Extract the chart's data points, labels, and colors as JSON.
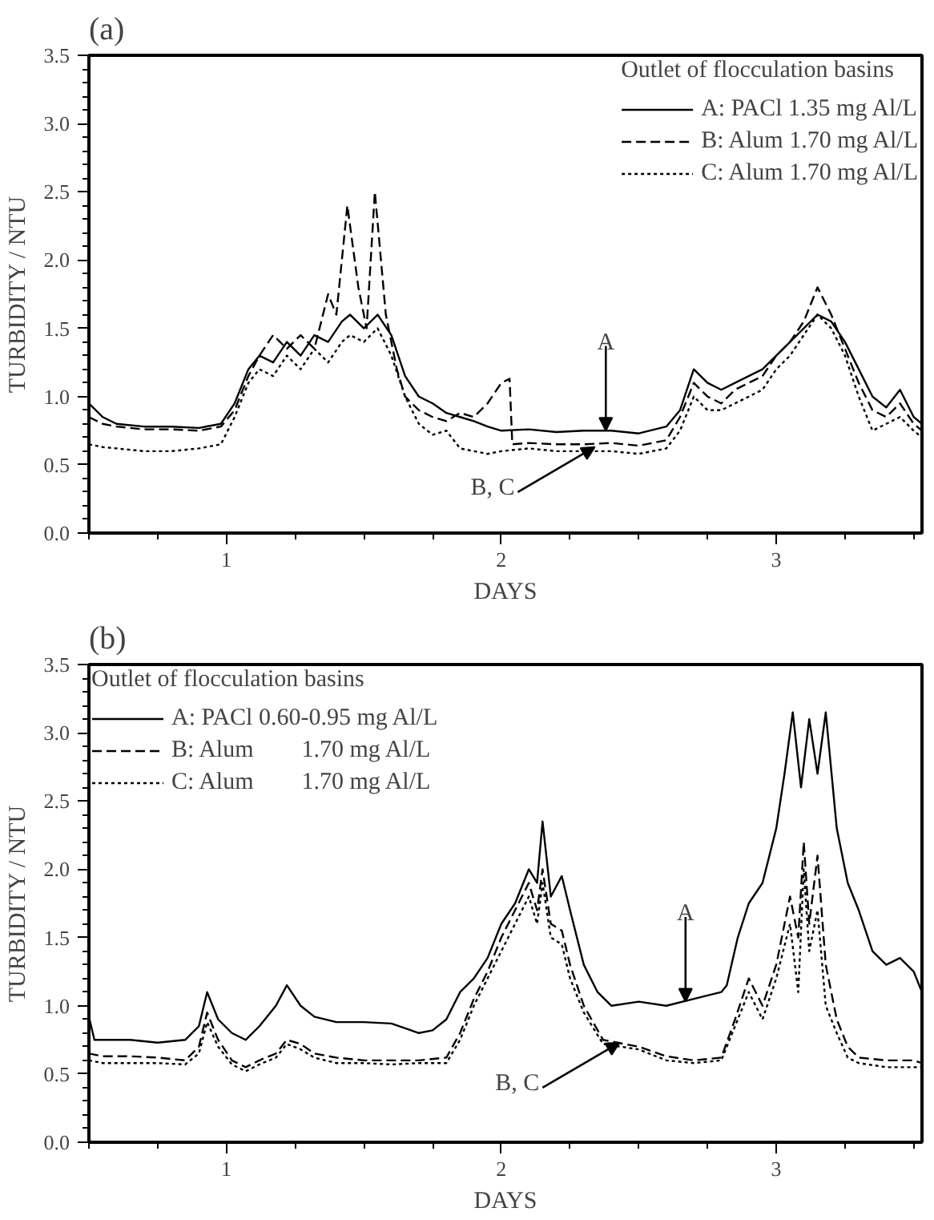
{
  "chart_data": [
    {
      "type": "line",
      "title": "(a)",
      "xlabel": "DAYS",
      "ylabel": "TURBIDITY / NTU",
      "legend_title": "Outlet of flocculation basins",
      "legend": "top right",
      "grid": false,
      "xlim": [
        0.5,
        3.53
      ],
      "xticks": [
        1,
        2,
        3
      ],
      "ylim": [
        0,
        3.5
      ],
      "yticks": [
        {
          "value": 0,
          "label": "0.0"
        },
        {
          "value": 0.5,
          "label": "0.5"
        },
        {
          "value": 1,
          "label": "1.0"
        },
        {
          "value": 1.5,
          "label": "1.5"
        },
        {
          "value": 2,
          "label": "2.0"
        },
        {
          "value": 2.5,
          "label": "2.5"
        },
        {
          "value": 3,
          "label": "3.0"
        },
        {
          "value": 3.5,
          "label": "3.5"
        }
      ],
      "annotations": [
        {
          "text": "A",
          "x": 2.38,
          "y": 0.75
        },
        {
          "text": "B, C",
          "x": 2.34,
          "y": 0.63
        }
      ],
      "series": [
        {
          "name": "A: PACl 1.35 mg Al/L",
          "color": "#000000",
          "line_style": "solid",
          "x": [
            0.5,
            0.55,
            0.6,
            0.7,
            0.8,
            0.9,
            0.98,
            1.03,
            1.08,
            1.12,
            1.17,
            1.22,
            1.27,
            1.32,
            1.37,
            1.42,
            1.45,
            1.5,
            1.55,
            1.6,
            1.65,
            1.7,
            1.75,
            1.8,
            1.85,
            1.9,
            1.95,
            2.0,
            2.1,
            2.2,
            2.3,
            2.4,
            2.5,
            2.6,
            2.65,
            2.7,
            2.75,
            2.8,
            2.85,
            2.9,
            2.95,
            3.0,
            3.05,
            3.1,
            3.15,
            3.2,
            3.25,
            3.3,
            3.35,
            3.4,
            3.45,
            3.5,
            3.53
          ],
          "values": [
            0.95,
            0.85,
            0.8,
            0.78,
            0.78,
            0.77,
            0.8,
            0.95,
            1.2,
            1.3,
            1.25,
            1.4,
            1.3,
            1.45,
            1.4,
            1.55,
            1.6,
            1.5,
            1.6,
            1.45,
            1.15,
            1.0,
            0.95,
            0.88,
            0.85,
            0.82,
            0.78,
            0.75,
            0.76,
            0.74,
            0.75,
            0.75,
            0.73,
            0.78,
            0.9,
            1.2,
            1.1,
            1.05,
            1.1,
            1.15,
            1.2,
            1.3,
            1.4,
            1.5,
            1.6,
            1.55,
            1.4,
            1.2,
            1.0,
            0.92,
            1.05,
            0.85,
            0.8
          ]
        },
        {
          "name": "B: Alum 1.70 mg Al/L",
          "color": "#000000",
          "line_style": "dashed",
          "x": [
            0.5,
            0.55,
            0.6,
            0.7,
            0.8,
            0.9,
            0.98,
            1.03,
            1.08,
            1.12,
            1.17,
            1.22,
            1.27,
            1.32,
            1.37,
            1.4,
            1.44,
            1.48,
            1.51,
            1.54,
            1.58,
            1.62,
            1.65,
            1.7,
            1.75,
            1.8,
            1.85,
            1.9,
            1.95,
            2.0,
            2.03,
            2.04,
            2.1,
            2.2,
            2.3,
            2.4,
            2.5,
            2.6,
            2.65,
            2.7,
            2.75,
            2.8,
            2.85,
            2.9,
            2.95,
            3.0,
            3.05,
            3.1,
            3.15,
            3.2,
            3.25,
            3.3,
            3.35,
            3.4,
            3.45,
            3.5,
            3.53
          ],
          "values": [
            0.85,
            0.8,
            0.78,
            0.76,
            0.76,
            0.75,
            0.78,
            0.9,
            1.15,
            1.3,
            1.45,
            1.35,
            1.45,
            1.35,
            1.75,
            1.6,
            2.4,
            1.8,
            1.5,
            2.5,
            1.6,
            1.2,
            1.0,
            0.9,
            0.85,
            0.82,
            0.88,
            0.85,
            0.95,
            1.1,
            1.13,
            0.65,
            0.66,
            0.65,
            0.65,
            0.66,
            0.64,
            0.68,
            0.85,
            1.1,
            1.0,
            0.95,
            1.05,
            1.1,
            1.15,
            1.3,
            1.4,
            1.55,
            1.8,
            1.6,
            1.35,
            1.1,
            0.9,
            0.85,
            0.95,
            0.8,
            0.75
          ]
        },
        {
          "name": "C: Alum 1.70 mg Al/L",
          "color": "#000000",
          "line_style": "dotted",
          "x": [
            0.5,
            0.55,
            0.6,
            0.7,
            0.8,
            0.9,
            0.98,
            1.03,
            1.08,
            1.12,
            1.17,
            1.22,
            1.27,
            1.32,
            1.37,
            1.42,
            1.45,
            1.5,
            1.55,
            1.6,
            1.65,
            1.7,
            1.75,
            1.8,
            1.85,
            1.9,
            1.95,
            2.0,
            2.1,
            2.2,
            2.3,
            2.4,
            2.5,
            2.6,
            2.65,
            2.7,
            2.75,
            2.8,
            2.85,
            2.9,
            2.95,
            3.0,
            3.05,
            3.1,
            3.15,
            3.2,
            3.25,
            3.3,
            3.35,
            3.4,
            3.45,
            3.5,
            3.53
          ],
          "values": [
            0.65,
            0.63,
            0.62,
            0.6,
            0.6,
            0.62,
            0.65,
            0.85,
            1.1,
            1.2,
            1.15,
            1.3,
            1.2,
            1.35,
            1.25,
            1.4,
            1.45,
            1.4,
            1.5,
            1.3,
            1.0,
            0.8,
            0.72,
            0.75,
            0.62,
            0.6,
            0.58,
            0.6,
            0.62,
            0.6,
            0.6,
            0.6,
            0.58,
            0.62,
            0.75,
            1.0,
            0.9,
            0.9,
            0.95,
            1.0,
            1.05,
            1.2,
            1.3,
            1.45,
            1.6,
            1.5,
            1.3,
            1.0,
            0.75,
            0.8,
            0.85,
            0.75,
            0.7
          ]
        }
      ]
    },
    {
      "type": "line",
      "title": "(b)",
      "xlabel": "DAYS",
      "ylabel": "TURBIDITY / NTU",
      "legend_title": "Outlet of flocculation basins",
      "legend": "top left",
      "grid": false,
      "xlim": [
        0.5,
        3.53
      ],
      "xticks": [
        1,
        2,
        3
      ],
      "ylim": [
        0,
        3.5
      ],
      "yticks": [
        {
          "value": 0,
          "label": "0.0"
        },
        {
          "value": 0.5,
          "label": "0.5"
        },
        {
          "value": 1,
          "label": "1.0"
        },
        {
          "value": 1.5,
          "label": "1.5"
        },
        {
          "value": 2,
          "label": "2.0"
        },
        {
          "value": 2.5,
          "label": "2.5"
        },
        {
          "value": 3,
          "label": "3.0"
        },
        {
          "value": 3.5,
          "label": "3.5"
        }
      ],
      "annotations": [
        {
          "text": "A",
          "x": 2.67,
          "y": 1.03
        },
        {
          "text": "B, C",
          "x": 2.43,
          "y": 0.73
        }
      ],
      "series": [
        {
          "name": "A: PACl 0.60-0.95 mg Al/L",
          "color": "#000000",
          "line_style": "solid",
          "x": [
            0.5,
            0.52,
            0.55,
            0.65,
            0.75,
            0.85,
            0.9,
            0.93,
            0.97,
            1.02,
            1.07,
            1.12,
            1.18,
            1.22,
            1.27,
            1.32,
            1.4,
            1.5,
            1.6,
            1.7,
            1.75,
            1.8,
            1.85,
            1.9,
            1.95,
            2.0,
            2.05,
            2.1,
            2.13,
            2.15,
            2.18,
            2.22,
            2.25,
            2.3,
            2.35,
            2.4,
            2.5,
            2.6,
            2.7,
            2.8,
            2.82,
            2.86,
            2.9,
            2.95,
            3.0,
            3.03,
            3.06,
            3.09,
            3.12,
            3.15,
            3.18,
            3.22,
            3.26,
            3.3,
            3.35,
            3.4,
            3.45,
            3.5,
            3.53
          ],
          "values": [
            0.92,
            0.75,
            0.75,
            0.75,
            0.73,
            0.75,
            0.85,
            1.1,
            0.9,
            0.8,
            0.75,
            0.85,
            1.0,
            1.15,
            1.0,
            0.92,
            0.88,
            0.88,
            0.87,
            0.8,
            0.82,
            0.9,
            1.1,
            1.2,
            1.35,
            1.6,
            1.75,
            2.0,
            1.9,
            2.35,
            1.8,
            1.95,
            1.7,
            1.3,
            1.1,
            1.0,
            1.03,
            1.0,
            1.05,
            1.1,
            1.15,
            1.5,
            1.75,
            1.9,
            2.3,
            2.7,
            3.15,
            2.6,
            3.1,
            2.7,
            3.15,
            2.3,
            1.9,
            1.7,
            1.4,
            1.3,
            1.35,
            1.25,
            1.1
          ]
        },
        {
          "name": "B: Alum        1.70 mg Al/L",
          "color": "#000000",
          "line_style": "dashed",
          "x": [
            0.5,
            0.55,
            0.65,
            0.75,
            0.85,
            0.9,
            0.93,
            0.97,
            1.02,
            1.07,
            1.12,
            1.18,
            1.22,
            1.27,
            1.32,
            1.4,
            1.5,
            1.6,
            1.7,
            1.8,
            1.85,
            1.9,
            1.95,
            2.0,
            2.05,
            2.1,
            2.13,
            2.15,
            2.18,
            2.22,
            2.25,
            2.3,
            2.37,
            2.5,
            2.6,
            2.7,
            2.8,
            2.85,
            2.9,
            2.95,
            3.0,
            3.05,
            3.08,
            3.1,
            3.12,
            3.15,
            3.18,
            3.22,
            3.26,
            3.3,
            3.4,
            3.5,
            3.53
          ],
          "values": [
            0.65,
            0.63,
            0.63,
            0.62,
            0.6,
            0.7,
            0.95,
            0.75,
            0.6,
            0.55,
            0.6,
            0.65,
            0.75,
            0.72,
            0.65,
            0.62,
            0.6,
            0.6,
            0.6,
            0.62,
            0.8,
            1.05,
            1.25,
            1.5,
            1.7,
            1.9,
            1.7,
            2.0,
            1.6,
            1.55,
            1.3,
            1.0,
            0.75,
            0.7,
            0.63,
            0.6,
            0.62,
            0.9,
            1.2,
            1.0,
            1.3,
            1.8,
            1.5,
            2.2,
            1.6,
            2.1,
            1.3,
            0.9,
            0.7,
            0.62,
            0.6,
            0.6,
            0.58
          ]
        },
        {
          "name": "C: Alum        1.70 mg Al/L",
          "color": "#000000",
          "line_style": "dotted",
          "x": [
            0.5,
            0.55,
            0.65,
            0.75,
            0.85,
            0.9,
            0.93,
            0.97,
            1.02,
            1.07,
            1.12,
            1.18,
            1.22,
            1.27,
            1.32,
            1.4,
            1.5,
            1.6,
            1.7,
            1.8,
            1.85,
            1.9,
            1.95,
            2.0,
            2.05,
            2.1,
            2.13,
            2.15,
            2.18,
            2.22,
            2.25,
            2.3,
            2.37,
            2.5,
            2.6,
            2.7,
            2.8,
            2.85,
            2.9,
            2.95,
            3.0,
            3.05,
            3.08,
            3.1,
            3.12,
            3.15,
            3.18,
            3.22,
            3.26,
            3.3,
            3.4,
            3.5,
            3.53
          ],
          "values": [
            0.6,
            0.58,
            0.58,
            0.58,
            0.57,
            0.65,
            0.88,
            0.7,
            0.57,
            0.52,
            0.57,
            0.62,
            0.72,
            0.68,
            0.62,
            0.58,
            0.58,
            0.57,
            0.58,
            0.58,
            0.75,
            1.0,
            1.2,
            1.4,
            1.6,
            1.8,
            1.6,
            1.9,
            1.5,
            1.45,
            1.2,
            0.95,
            0.72,
            0.68,
            0.6,
            0.58,
            0.6,
            0.85,
            1.1,
            0.9,
            1.2,
            1.6,
            1.1,
            2.0,
            1.4,
            1.7,
            1.0,
            0.8,
            0.62,
            0.58,
            0.55,
            0.55,
            0.55
          ]
        }
      ]
    }
  ]
}
